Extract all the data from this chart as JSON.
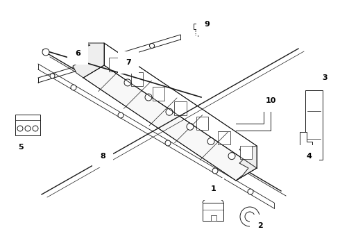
{
  "bg_color": "#ffffff",
  "line_color": "#1a1a1a",
  "lw": 0.7,
  "fig_w": 4.9,
  "fig_h": 3.6,
  "dpi": 100
}
